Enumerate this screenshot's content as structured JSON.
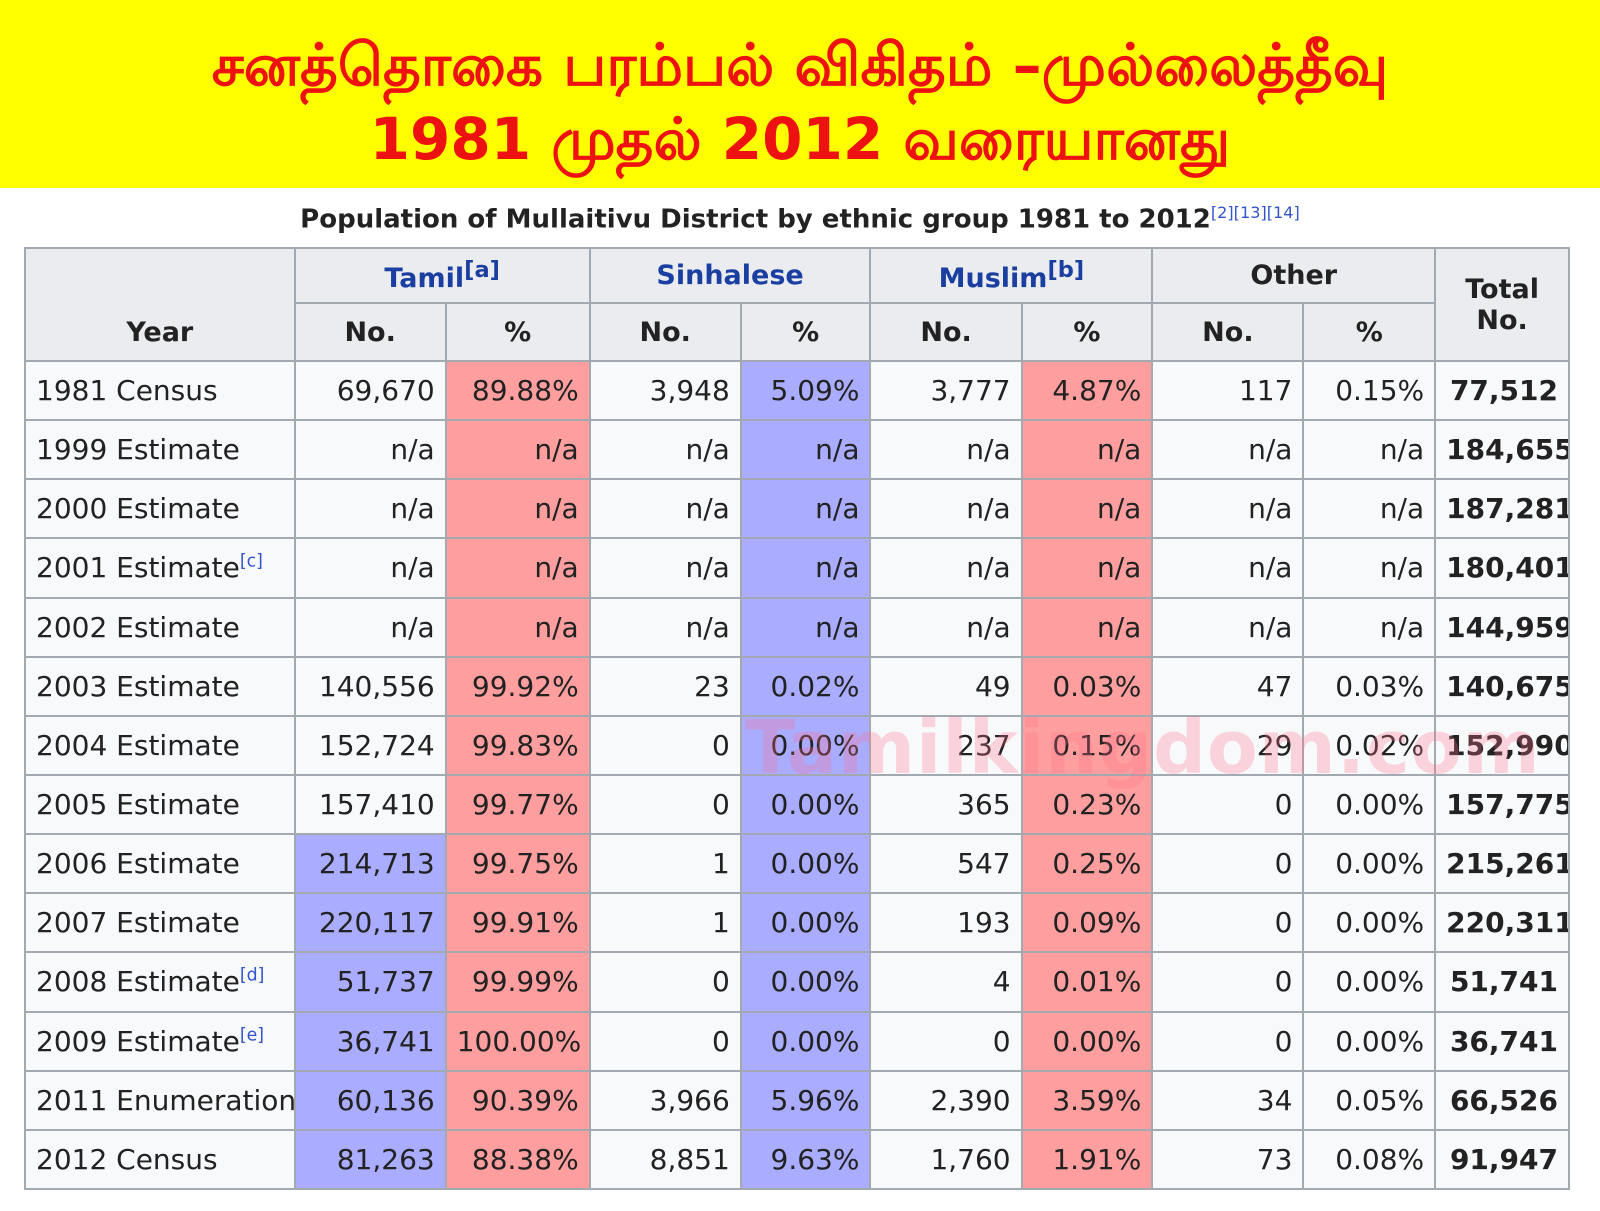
{
  "banner": {
    "line1": "சனத்தொகை பரம்பல் விகிதம் –முல்லைத்தீவு",
    "line2": "1981 முதல் 2012 வரையானது"
  },
  "caption": {
    "text": "Population of Mullaitivu District by ethnic group 1981 to 2012",
    "refs": "[2][13][14]"
  },
  "table": {
    "headers": {
      "year": "Year",
      "tamil": "Tamil",
      "tamil_ref": "[a]",
      "sinhalese": "Sinhalese",
      "muslim": "Muslim",
      "muslim_ref": "[b]",
      "other": "Other",
      "total": "Total",
      "no": "No.",
      "pct": "%"
    },
    "rows": [
      {
        "year": "1981 Census",
        "ref": "",
        "tamil_no": "69,670",
        "tamil_pct": "89.88%",
        "sin_no": "3,948",
        "sin_pct": "5.09%",
        "mus_no": "3,777",
        "mus_pct": "4.87%",
        "oth_no": "117",
        "oth_pct": "0.15%",
        "total": "77,512"
      },
      {
        "year": "1999 Estimate",
        "ref": "",
        "tamil_no": "n/a",
        "tamil_pct": "n/a",
        "sin_no": "n/a",
        "sin_pct": "n/a",
        "mus_no": "n/a",
        "mus_pct": "n/a",
        "oth_no": "n/a",
        "oth_pct": "n/a",
        "total": "184,655"
      },
      {
        "year": "2000 Estimate",
        "ref": "",
        "tamil_no": "n/a",
        "tamil_pct": "n/a",
        "sin_no": "n/a",
        "sin_pct": "n/a",
        "mus_no": "n/a",
        "mus_pct": "n/a",
        "oth_no": "n/a",
        "oth_pct": "n/a",
        "total": "187,281"
      },
      {
        "year": "2001 Estimate",
        "ref": "[c]",
        "tamil_no": "n/a",
        "tamil_pct": "n/a",
        "sin_no": "n/a",
        "sin_pct": "n/a",
        "mus_no": "n/a",
        "mus_pct": "n/a",
        "oth_no": "n/a",
        "oth_pct": "n/a",
        "total": "180,401"
      },
      {
        "year": "2002 Estimate",
        "ref": "",
        "tamil_no": "n/a",
        "tamil_pct": "n/a",
        "sin_no": "n/a",
        "sin_pct": "n/a",
        "mus_no": "n/a",
        "mus_pct": "n/a",
        "oth_no": "n/a",
        "oth_pct": "n/a",
        "total": "144,959"
      },
      {
        "year": "2003 Estimate",
        "ref": "",
        "tamil_no": "140,556",
        "tamil_pct": "99.92%",
        "sin_no": "23",
        "sin_pct": "0.02%",
        "mus_no": "49",
        "mus_pct": "0.03%",
        "oth_no": "47",
        "oth_pct": "0.03%",
        "total": "140,675"
      },
      {
        "year": "2004 Estimate",
        "ref": "",
        "tamil_no": "152,724",
        "tamil_pct": "99.83%",
        "sin_no": "0",
        "sin_pct": "0.00%",
        "mus_no": "237",
        "mus_pct": "0.15%",
        "oth_no": "29",
        "oth_pct": "0.02%",
        "total": "152,990"
      },
      {
        "year": "2005 Estimate",
        "ref": "",
        "tamil_no": "157,410",
        "tamil_pct": "99.77%",
        "sin_no": "0",
        "sin_pct": "0.00%",
        "mus_no": "365",
        "mus_pct": "0.23%",
        "oth_no": "0",
        "oth_pct": "0.00%",
        "total": "157,775"
      },
      {
        "year": "2006 Estimate",
        "ref": "",
        "tamil_no": "214,713",
        "tamil_pct": "99.75%",
        "sin_no": "1",
        "sin_pct": "0.00%",
        "mus_no": "547",
        "mus_pct": "0.25%",
        "oth_no": "0",
        "oth_pct": "0.00%",
        "total": "215,261"
      },
      {
        "year": "2007 Estimate",
        "ref": "",
        "tamil_no": "220,117",
        "tamil_pct": "99.91%",
        "sin_no": "1",
        "sin_pct": "0.00%",
        "mus_no": "193",
        "mus_pct": "0.09%",
        "oth_no": "0",
        "oth_pct": "0.00%",
        "total": "220,311"
      },
      {
        "year": "2008 Estimate",
        "ref": "[d]",
        "tamil_no": "51,737",
        "tamil_pct": "99.99%",
        "sin_no": "0",
        "sin_pct": "0.00%",
        "mus_no": "4",
        "mus_pct": "0.01%",
        "oth_no": "0",
        "oth_pct": "0.00%",
        "total": "51,741"
      },
      {
        "year": "2009 Estimate",
        "ref": "[e]",
        "tamil_no": "36,741",
        "tamil_pct": "100.00%",
        "sin_no": "0",
        "sin_pct": "0.00%",
        "mus_no": "0",
        "mus_pct": "0.00%",
        "oth_no": "0",
        "oth_pct": "0.00%",
        "total": "36,741"
      },
      {
        "year": "2011 Enumeration",
        "ref": "",
        "tamil_no": "60,136",
        "tamil_pct": "90.39%",
        "sin_no": "3,966",
        "sin_pct": "5.96%",
        "mus_no": "2,390",
        "mus_pct": "3.59%",
        "oth_no": "34",
        "oth_pct": "0.05%",
        "total": "66,526"
      },
      {
        "year": "2012 Census",
        "ref": "",
        "tamil_no": "81,263",
        "tamil_pct": "88.38%",
        "sin_no": "8,851",
        "sin_pct": "9.63%",
        "mus_no": "1,760",
        "mus_pct": "1.91%",
        "oth_no": "73",
        "oth_pct": "0.08%",
        "total": "91,947"
      }
    ]
  },
  "watermark": "Tamilkingdom.com",
  "colors": {
    "banner_bg": "#ffff00",
    "banner_text": "#ee1111",
    "highlight_red": "#ff9e9e",
    "highlight_blue": "#a9acff",
    "header_bg": "#eaecf0",
    "link_blue": "#1a3fa0"
  }
}
